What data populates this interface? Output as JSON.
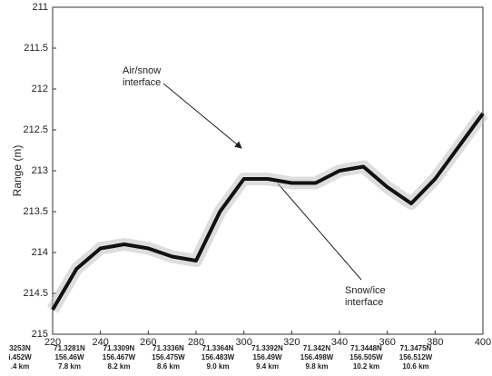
{
  "chart_data": {
    "type": "line",
    "y_label": "Range (m)",
    "x": [
      220,
      230,
      240,
      250,
      260,
      270,
      280,
      285,
      290,
      300,
      310,
      320,
      330,
      340,
      350,
      360,
      370,
      380,
      390,
      400
    ],
    "values": [
      214.7,
      214.2,
      213.95,
      213.9,
      213.95,
      214.05,
      214.1,
      213.8,
      213.5,
      213.1,
      213.1,
      213.15,
      213.15,
      213.0,
      212.95,
      213.2,
      213.4,
      213.1,
      212.7,
      212.3
    ],
    "color": "#111111",
    "xlim": [
      220,
      400
    ],
    "xticks": [
      220,
      240,
      260,
      280,
      300,
      320,
      340,
      360,
      380,
      400
    ],
    "ylim": [
      215,
      211
    ],
    "yticks": [
      215,
      214.5,
      214,
      213.5,
      213,
      212.5,
      212,
      211.5,
      211
    ],
    "location_labels": [
      [
        "3253N",
        "i.452W",
        ".4 km"
      ],
      [
        "71.3281N",
        "156.46W",
        "7.8 km"
      ],
      [
        "71.3309N",
        "156.467W",
        "8.2 km"
      ],
      [
        "71.3336N",
        "156.475W",
        "8.6 km"
      ],
      [
        "71.3364N",
        "156.483W",
        "9.0 km"
      ],
      [
        "71.3392N",
        "156.49W",
        "9.4 km"
      ],
      [
        "71.342N",
        "156.498W",
        "9.8 km"
      ],
      [
        "71.3448N",
        "156.505W",
        "10.2 km"
      ],
      [
        "71.3475N",
        "156.512W",
        "10.6 km"
      ]
    ],
    "annotations": [
      {
        "lines": [
          "Air/snow",
          "interface"
        ]
      },
      {
        "lines": [
          "Snow/ice",
          "interface"
        ]
      }
    ]
  }
}
